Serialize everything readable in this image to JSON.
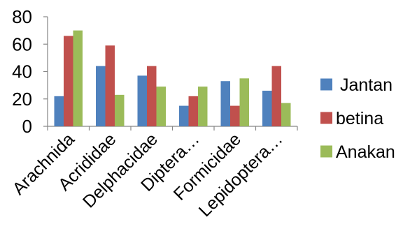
{
  "chart_data": {
    "type": "bar",
    "title": "",
    "xlabel": "",
    "ylabel": "",
    "categories": [
      "Arachnida",
      "Acrididae",
      "Delphacidae",
      "Diptera…",
      "Formicidae",
      "Lepidoptera…"
    ],
    "series": [
      {
        "name": "Jantan",
        "values": [
          22,
          44,
          37,
          15,
          33,
          26
        ],
        "color": "#4F81BD"
      },
      {
        "name": "betina",
        "values": [
          66,
          59,
          44,
          22,
          15,
          44
        ],
        "color": "#C0504D"
      },
      {
        "name": "Anakan",
        "values": [
          70,
          23,
          29,
          29,
          35,
          17
        ],
        "color": "#9BBB59"
      }
    ],
    "ylim": [
      0,
      80
    ],
    "yticks": [
      "0",
      "20",
      "40",
      "60",
      "80"
    ],
    "grid": false,
    "legend_position": "right"
  }
}
